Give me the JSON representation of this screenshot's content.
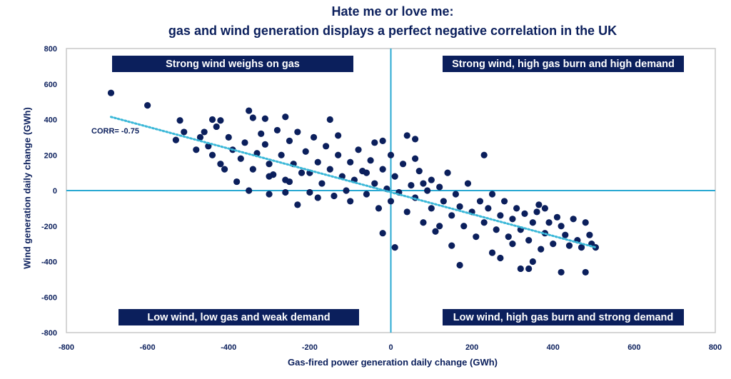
{
  "colors": {
    "marker": "#0b1f5c",
    "axis_lines": "#2aa9d2",
    "trendline": "#3bb8d8",
    "frame": "#c8c8c8",
    "box": "#0b1f5c"
  },
  "chart_data": {
    "type": "scatter",
    "title": "Hate me or love me:",
    "subtitle": "gas and wind generation displays a perfect negative correlation in the UK",
    "xlabel": "Gas-fired power generation daily change (GWh)",
    "ylabel": "Wind generation daily change (GWh)",
    "xlim": [
      -800,
      800
    ],
    "ylim": [
      -800,
      800
    ],
    "xticks": [
      "-800",
      "-600",
      "-400",
      "-200",
      "0",
      "200",
      "400",
      "600",
      "800"
    ],
    "yticks": [
      "800",
      "600",
      "400",
      "200",
      "0",
      "-200",
      "-400",
      "-600",
      "-800"
    ],
    "grid": false,
    "annotations": {
      "top_left": "Strong wind weighs on gas",
      "top_right": "Strong wind, high gas burn and high demand",
      "bottom_left": "Low wind, low gas and weak demand",
      "bottom_right": "Low wind, high gas burn and strong demand",
      "corr": "CORR= -0.75"
    },
    "trendline": {
      "x": [
        -690,
        505
      ],
      "y": [
        415,
        -320
      ],
      "style": "dotted"
    },
    "points": [
      [
        -690,
        550
      ],
      [
        -600,
        480
      ],
      [
        -530,
        285
      ],
      [
        -510,
        330
      ],
      [
        -520,
        395
      ],
      [
        -440,
        400
      ],
      [
        -420,
        395
      ],
      [
        -430,
        360
      ],
      [
        -350,
        450
      ],
      [
        -340,
        410
      ],
      [
        -310,
        405
      ],
      [
        -260,
        415
      ],
      [
        -150,
        400
      ],
      [
        -130,
        310
      ],
      [
        -40,
        270
      ],
      [
        40,
        310
      ],
      [
        60,
        290
      ],
      [
        -470,
        300
      ],
      [
        -450,
        250
      ],
      [
        -440,
        200
      ],
      [
        -420,
        150
      ],
      [
        -410,
        120
      ],
      [
        -400,
        300
      ],
      [
        -390,
        230
      ],
      [
        -380,
        50
      ],
      [
        -370,
        180
      ],
      [
        -360,
        270
      ],
      [
        -350,
        0
      ],
      [
        -340,
        120
      ],
      [
        -330,
        210
      ],
      [
        -320,
        320
      ],
      [
        -310,
        260
      ],
      [
        -300,
        -20
      ],
      [
        -300,
        150
      ],
      [
        -290,
        90
      ],
      [
        -280,
        340
      ],
      [
        -270,
        200
      ],
      [
        -260,
        60
      ],
      [
        -250,
        50
      ],
      [
        -250,
        280
      ],
      [
        -240,
        150
      ],
      [
        -230,
        -80
      ],
      [
        -230,
        330
      ],
      [
        -220,
        100
      ],
      [
        -210,
        220
      ],
      [
        -200,
        100
      ],
      [
        -200,
        -10
      ],
      [
        -190,
        300
      ],
      [
        -180,
        160
      ],
      [
        -170,
        40
      ],
      [
        -160,
        250
      ],
      [
        -150,
        120
      ],
      [
        -140,
        -30
      ],
      [
        -130,
        200
      ],
      [
        -120,
        80
      ],
      [
        -110,
        0
      ],
      [
        -100,
        160
      ],
      [
        -100,
        -60
      ],
      [
        -90,
        60
      ],
      [
        -80,
        230
      ],
      [
        -70,
        110
      ],
      [
        -60,
        -20
      ],
      [
        -50,
        170
      ],
      [
        -40,
        40
      ],
      [
        -30,
        -100
      ],
      [
        -20,
        -240
      ],
      [
        -20,
        120
      ],
      [
        -10,
        10
      ],
      [
        0,
        200
      ],
      [
        0,
        -60
      ],
      [
        10,
        -320
      ],
      [
        10,
        80
      ],
      [
        20,
        -10
      ],
      [
        30,
        150
      ],
      [
        40,
        -120
      ],
      [
        50,
        30
      ],
      [
        60,
        -40
      ],
      [
        70,
        110
      ],
      [
        80,
        -180
      ],
      [
        90,
        0
      ],
      [
        100,
        60
      ],
      [
        100,
        -100
      ],
      [
        110,
        -230
      ],
      [
        120,
        -200
      ],
      [
        120,
        20
      ],
      [
        130,
        -60
      ],
      [
        140,
        100
      ],
      [
        150,
        -310
      ],
      [
        150,
        -140
      ],
      [
        160,
        -20
      ],
      [
        170,
        -420
      ],
      [
        170,
        -90
      ],
      [
        180,
        -200
      ],
      [
        190,
        40
      ],
      [
        200,
        -120
      ],
      [
        210,
        -260
      ],
      [
        220,
        -60
      ],
      [
        230,
        200
      ],
      [
        230,
        -180
      ],
      [
        240,
        -100
      ],
      [
        250,
        -350
      ],
      [
        250,
        -20
      ],
      [
        260,
        -220
      ],
      [
        270,
        -380
      ],
      [
        270,
        -140
      ],
      [
        280,
        -60
      ],
      [
        290,
        -260
      ],
      [
        300,
        -300
      ],
      [
        300,
        -160
      ],
      [
        310,
        -100
      ],
      [
        320,
        -440
      ],
      [
        320,
        -220
      ],
      [
        330,
        -130
      ],
      [
        340,
        -440
      ],
      [
        340,
        -280
      ],
      [
        350,
        -400
      ],
      [
        350,
        -180
      ],
      [
        360,
        -120
      ],
      [
        365,
        -80
      ],
      [
        370,
        -330
      ],
      [
        380,
        -100
      ],
      [
        380,
        -240
      ],
      [
        390,
        -180
      ],
      [
        400,
        -300
      ],
      [
        410,
        -150
      ],
      [
        420,
        -200
      ],
      [
        420,
        -460
      ],
      [
        430,
        -250
      ],
      [
        440,
        -310
      ],
      [
        450,
        -160
      ],
      [
        460,
        -280
      ],
      [
        470,
        -320
      ],
      [
        480,
        -460
      ],
      [
        480,
        -180
      ],
      [
        490,
        -250
      ],
      [
        495,
        -300
      ],
      [
        505,
        -320
      ],
      [
        -480,
        230
      ],
      [
        -460,
        330
      ],
      [
        -300,
        80
      ],
      [
        -260,
        -10
      ],
      [
        -180,
        -40
      ],
      [
        -60,
        100
      ],
      [
        80,
        40
      ],
      [
        60,
        180
      ],
      [
        -20,
        280
      ]
    ]
  }
}
